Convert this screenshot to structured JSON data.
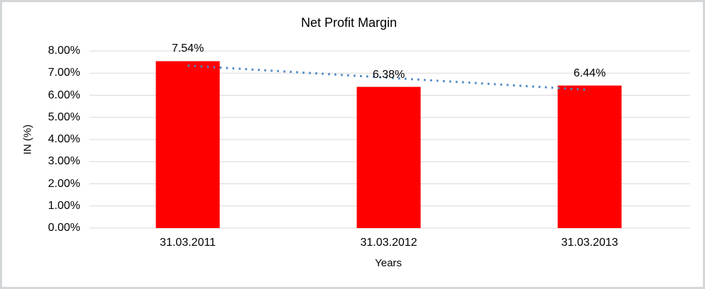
{
  "chart_data": {
    "type": "bar",
    "title": "Net Profit Margin",
    "xlabel": "Years",
    "ylabel": "IN (%)",
    "categories": [
      "31.03.2011",
      "31.03.2012",
      "31.03.2013"
    ],
    "values": [
      7.54,
      6.38,
      6.44
    ],
    "value_labels": [
      "7.54%",
      "6.38%",
      "6.44%"
    ],
    "ylim": [
      0,
      8
    ],
    "ytick_step": 1,
    "ytick_labels": [
      "0.00%",
      "1.00%",
      "2.00%",
      "3.00%",
      "4.00%",
      "5.00%",
      "6.00%",
      "7.00%",
      "8.00%"
    ],
    "grid": true,
    "legend": "none",
    "colors": {
      "bar": "#ff0000",
      "gridline": "#d9d9d9",
      "trendline": "#4e87c4",
      "text": "#000000",
      "frame_border": "#d4d7d9"
    },
    "trendline": {
      "type": "linear",
      "style": "dotted",
      "start_value": 7.34,
      "end_value": 6.24
    }
  }
}
